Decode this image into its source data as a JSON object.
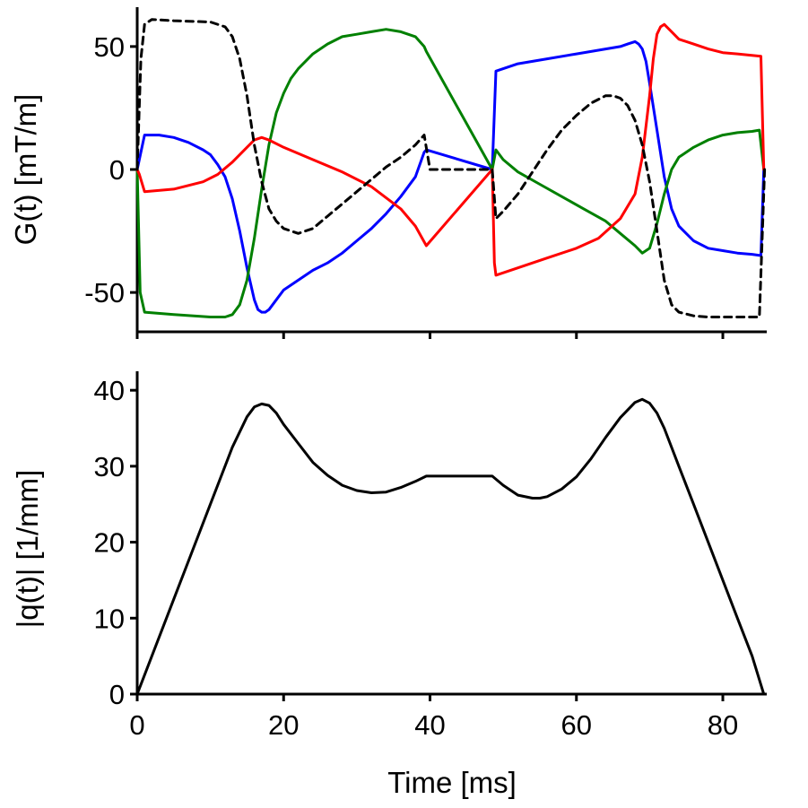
{
  "chart_data": [
    {
      "type": "line",
      "title": "",
      "xlabel": "",
      "ylabel": "G(t) [mT/m]",
      "xlim": [
        0,
        86
      ],
      "ylim": [
        -66,
        66
      ],
      "xticks": [
        0,
        20,
        40,
        60,
        80
      ],
      "yticks": [
        -50,
        0,
        50
      ],
      "ytick_labels": [
        "-50",
        "0",
        "50"
      ],
      "grid": false,
      "series": [
        {
          "name": "blue",
          "color": "#0000ff",
          "dash": "solid",
          "x": [
            0,
            1,
            3,
            5,
            7,
            9,
            10,
            11,
            12,
            13,
            14,
            15,
            16,
            16.5,
            17,
            17.5,
            18,
            19,
            20,
            22,
            24,
            26,
            28,
            30,
            32,
            34,
            36,
            38,
            39.2,
            39.5,
            48.5,
            49,
            52,
            56,
            60,
            64,
            66,
            67,
            68,
            68.5,
            69,
            69.5,
            70,
            71,
            72,
            73,
            74,
            76,
            78,
            80,
            82,
            84,
            85.2,
            85.6
          ],
          "y": [
            0,
            14,
            14,
            13,
            11,
            8,
            6,
            2,
            -3,
            -12,
            -25,
            -40,
            -53,
            -57,
            -58,
            -58,
            -57,
            -53,
            -49,
            -45,
            -41,
            -38,
            -34,
            -29,
            -24,
            -18,
            -11,
            -3,
            7,
            8,
            0,
            40,
            43,
            45,
            47,
            49,
            50,
            51,
            52,
            51,
            49,
            44,
            35,
            16,
            -3,
            -16,
            -23,
            -29,
            -32,
            -33,
            -34,
            -34.5,
            -35,
            0
          ]
        },
        {
          "name": "green",
          "color": "#008000",
          "dash": "solid",
          "x": [
            0,
            0.4,
            1,
            5,
            10,
            12,
            13,
            14,
            15,
            16,
            17,
            18,
            19,
            20,
            21,
            22,
            24,
            26,
            28,
            30,
            32,
            34,
            36,
            38,
            39.2,
            39.5,
            48.5,
            49,
            50,
            52,
            55,
            58,
            61,
            64,
            66,
            68,
            69,
            70,
            71,
            72,
            73,
            74,
            76,
            78,
            80,
            82,
            84,
            85,
            85.6
          ],
          "y": [
            0,
            -50,
            -58,
            -59,
            -60,
            -60,
            -59,
            -55,
            -45,
            -28,
            -8,
            10,
            23,
            31,
            37,
            41,
            47,
            51,
            54,
            55,
            56,
            57,
            56,
            54,
            50,
            48,
            0,
            8,
            4,
            -1,
            -6,
            -11,
            -16,
            -21,
            -26,
            -31,
            -34,
            -32,
            -22,
            -10,
            0,
            5,
            9,
            12,
            14,
            15,
            15.5,
            16,
            0
          ]
        },
        {
          "name": "red",
          "color": "#ff0000",
          "dash": "solid",
          "x": [
            0,
            0.3,
            1,
            5,
            9,
            11,
            13,
            15,
            16,
            17,
            18,
            20,
            24,
            28,
            32,
            36,
            38,
            39.5,
            48.5,
            48.8,
            49,
            52,
            56,
            60,
            63,
            66,
            68,
            69,
            70,
            70.5,
            71,
            71.5,
            72,
            73,
            74,
            76,
            78,
            80,
            82,
            85.2,
            85.6
          ],
          "y": [
            0,
            -2,
            -9,
            -8,
            -5,
            -2,
            3,
            9,
            12,
            13,
            12,
            9,
            4,
            -1,
            -7,
            -16,
            -23,
            -31,
            0,
            -38,
            -43,
            -40,
            -36,
            -32,
            -28,
            -20,
            -10,
            5,
            30,
            45,
            55,
            58,
            59,
            56,
            53,
            51,
            49,
            47.5,
            47,
            46,
            0
          ]
        },
        {
          "name": "black-dashed",
          "color": "#000000",
          "dash": "dashed",
          "x": [
            0,
            0.5,
            1,
            2,
            5,
            10,
            12,
            13,
            14,
            15,
            16,
            17,
            18,
            19,
            20,
            22,
            24,
            26,
            28,
            30,
            32,
            34,
            36,
            38,
            39.2,
            40,
            48.5,
            49,
            50,
            52,
            54,
            56,
            58,
            60,
            62,
            64,
            65,
            66,
            67,
            68,
            69,
            70,
            71,
            72,
            73,
            74,
            76,
            78,
            80,
            82,
            84,
            85,
            85.7
          ],
          "y": [
            0,
            45,
            59,
            61,
            60.5,
            60,
            58,
            54,
            45,
            30,
            10,
            -5,
            -16,
            -21,
            -24,
            -26,
            -24,
            -19,
            -14,
            -9,
            -4,
            1,
            5,
            10,
            14,
            0,
            0,
            -20,
            -17,
            -10,
            -1,
            8,
            16,
            22,
            27,
            30,
            30,
            29,
            26,
            20,
            10,
            -5,
            -25,
            -45,
            -55,
            -58,
            -59.5,
            -60,
            -60,
            -60,
            -60,
            -60,
            0
          ]
        }
      ]
    },
    {
      "type": "line",
      "title": "",
      "xlabel": "Time [ms]",
      "ylabel": "|q(t)| [1/mm]",
      "xlim": [
        0,
        86
      ],
      "ylim": [
        0,
        42.5
      ],
      "xticks": [
        0,
        20,
        40,
        60,
        80
      ],
      "xtick_labels": [
        "0",
        "20",
        "40",
        "60",
        "80"
      ],
      "yticks": [
        0,
        10,
        20,
        30,
        40
      ],
      "ytick_labels": [
        "0",
        "10",
        "20",
        "30",
        "40"
      ],
      "grid": false,
      "series": [
        {
          "name": "q-magnitude",
          "color": "#000000",
          "dash": "solid",
          "x": [
            0,
            5,
            10,
            13,
            15,
            16,
            17,
            18,
            19,
            20,
            22,
            24,
            26,
            28,
            30,
            32,
            34,
            36,
            38,
            39.5,
            48.5,
            50,
            52,
            54,
            55,
            56,
            58,
            60,
            62,
            64,
            66,
            68,
            69,
            70,
            71,
            72,
            74,
            76,
            78,
            80,
            82,
            84,
            85.6
          ],
          "y": [
            0,
            12.5,
            25,
            32.5,
            36.5,
            37.8,
            38.2,
            38,
            37,
            35.5,
            33,
            30.5,
            28.8,
            27.5,
            26.8,
            26.5,
            26.6,
            27.2,
            28,
            28.7,
            28.7,
            27.5,
            26.2,
            25.8,
            25.8,
            26,
            27,
            28.6,
            31,
            33.8,
            36.4,
            38.4,
            38.8,
            38.3,
            37,
            35,
            30,
            25,
            20,
            15,
            10,
            5,
            0
          ]
        }
      ]
    }
  ]
}
